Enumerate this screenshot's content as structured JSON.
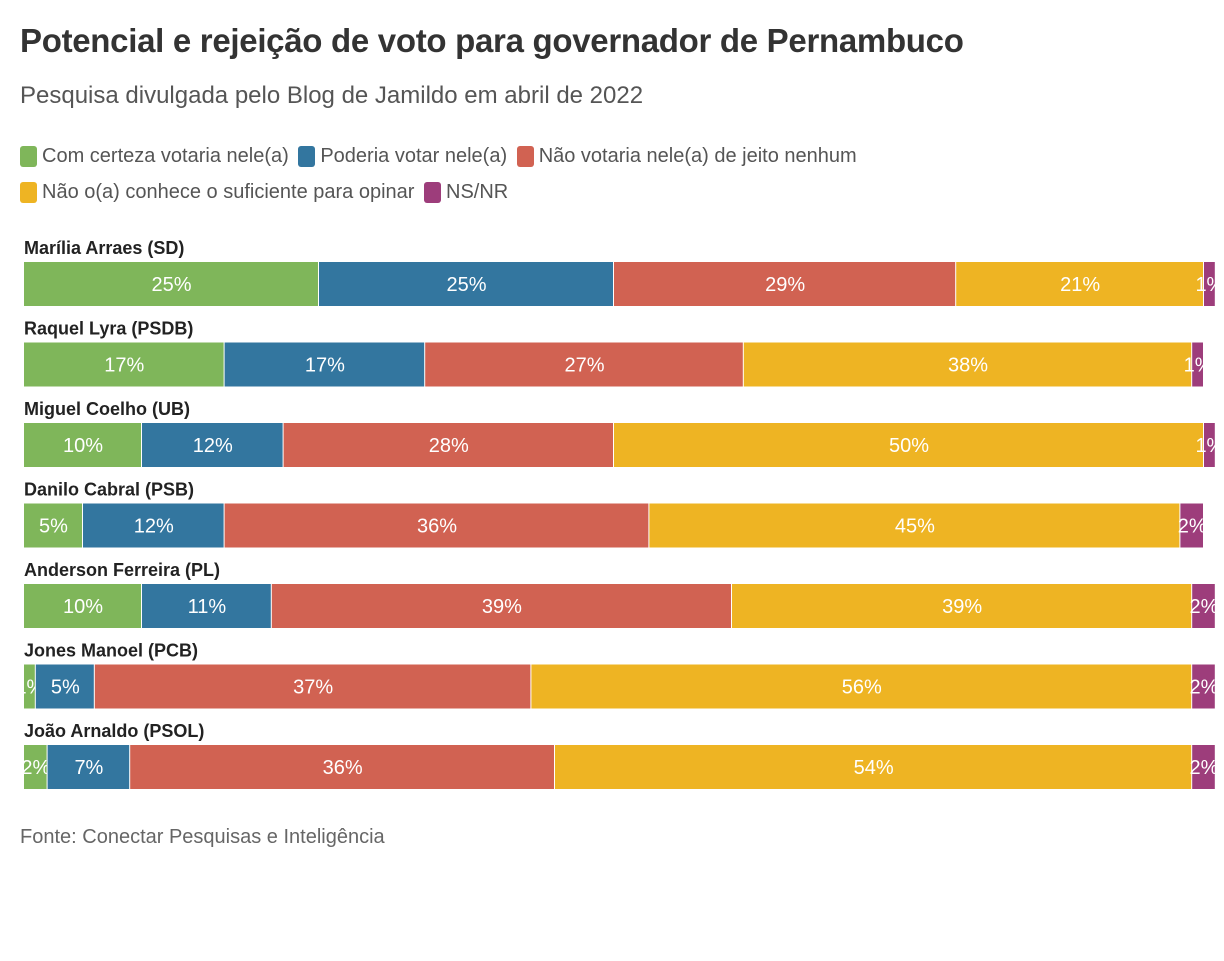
{
  "header": {
    "title": "Potencial e rejeição de voto para governador de Pernambuco",
    "subtitle": "Pesquisa divulgada pelo Blog de Jamildo em abril de 2022"
  },
  "footer": {
    "source": "Fonte: Conectar Pesquisas e Inteligência"
  },
  "chart_data": {
    "type": "bar",
    "orientation": "horizontal-stacked-100",
    "title": "Potencial e rejeição de voto para governador de Pernambuco",
    "subtitle": "Pesquisa divulgada pelo Blog de Jamildo em abril de 2022",
    "xlabel": "",
    "ylabel": "",
    "xlim": [
      0,
      100
    ],
    "grid": false,
    "legend_position": "top-left",
    "categories": [
      "Marília Arraes (SD)",
      "Raquel Lyra (PSDB)",
      "Miguel Coelho (UB)",
      "Danilo Cabral (PSB)",
      "Anderson Ferreira (PL)",
      "Jones Manoel (PCB)",
      "João Arnaldo (PSOL)"
    ],
    "series": [
      {
        "name": "Com certeza votaria nele(a)",
        "color": "#7fb65a",
        "values": [
          25,
          17,
          10,
          5,
          10,
          1,
          2
        ]
      },
      {
        "name": "Poderia votar nele(a)",
        "color": "#33769f",
        "values": [
          25,
          17,
          12,
          12,
          11,
          5,
          7
        ]
      },
      {
        "name": "Não votaria nele(a) de jeito nenhum",
        "color": "#d16252",
        "values": [
          29,
          27,
          28,
          36,
          39,
          37,
          36
        ]
      },
      {
        "name": "Não o(a) conhece o suficiente para opinar",
        "color": "#eeb423",
        "values": [
          21,
          38,
          50,
          45,
          39,
          56,
          54
        ]
      },
      {
        "name": "NS/NR",
        "color": "#9d3d7b",
        "values": [
          1,
          1,
          1,
          2,
          2,
          2,
          2
        ]
      }
    ],
    "value_suffix": "%"
  }
}
